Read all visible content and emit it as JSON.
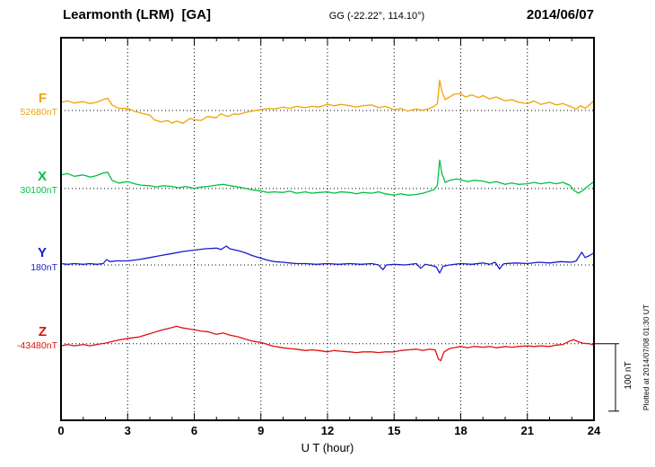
{
  "header": {
    "station": "Learmonth (LRM)  [GA]",
    "coords": "GG (-22.22°, 114.10°)",
    "date": "2014/06/07"
  },
  "axis": {
    "xlabel": "U T (hour)",
    "ticks": [
      0,
      3,
      6,
      9,
      12,
      15,
      18,
      21,
      24
    ]
  },
  "scale_bar": {
    "label": "100 nT",
    "span_nT": 100
  },
  "watermark": "Plotted at 2014/07/08 01:30 UT",
  "chart_data": {
    "type": "line",
    "title": "Learmonth (LRM) [GA] magnetogram 2014/06/07",
    "xlabel": "U T (hour)",
    "ylabel": "",
    "x_range": [
      0,
      24
    ],
    "grid": "dotted vertical lines every 3 h; dotted horizontal baseline per component",
    "y_units": "nT offset from each component baseline_value",
    "series": [
      {
        "name": "F",
        "baseline_label": "52680nT",
        "baseline_value": 52680,
        "color": "#f0a202",
        "baseline_frac": 0.19,
        "points": [
          [
            0,
            12
          ],
          [
            0.3,
            14
          ],
          [
            0.6,
            11
          ],
          [
            1,
            13
          ],
          [
            1.3,
            10
          ],
          [
            1.6,
            12
          ],
          [
            1.9,
            16
          ],
          [
            2.1,
            18
          ],
          [
            2.3,
            8
          ],
          [
            2.6,
            3
          ],
          [
            3,
            3
          ],
          [
            3.3,
            -1
          ],
          [
            3.6,
            -4
          ],
          [
            4,
            -7
          ],
          [
            4.2,
            -14
          ],
          [
            4.5,
            -17
          ],
          [
            4.8,
            -15
          ],
          [
            5,
            -19
          ],
          [
            5.2,
            -16
          ],
          [
            5.5,
            -19
          ],
          [
            5.8,
            -12
          ],
          [
            6,
            -14
          ],
          [
            6.3,
            -15
          ],
          [
            6.6,
            -9
          ],
          [
            7,
            -11
          ],
          [
            7.2,
            -5
          ],
          [
            7.5,
            -9
          ],
          [
            7.8,
            -5
          ],
          [
            8,
            -6
          ],
          [
            8.3,
            -3
          ],
          [
            8.6,
            -1
          ],
          [
            9,
            1
          ],
          [
            9.3,
            3
          ],
          [
            9.6,
            2
          ],
          [
            10,
            5
          ],
          [
            10.3,
            3
          ],
          [
            10.6,
            6
          ],
          [
            11,
            4
          ],
          [
            11.3,
            6
          ],
          [
            11.6,
            5
          ],
          [
            12,
            9
          ],
          [
            12.3,
            7
          ],
          [
            12.6,
            9
          ],
          [
            13,
            7
          ],
          [
            13.3,
            5
          ],
          [
            13.6,
            7
          ],
          [
            14,
            8
          ],
          [
            14.3,
            4
          ],
          [
            14.6,
            6
          ],
          [
            15,
            1
          ],
          [
            15.3,
            3
          ],
          [
            15.6,
            -1
          ],
          [
            16,
            2
          ],
          [
            16.3,
            0
          ],
          [
            16.6,
            3
          ],
          [
            16.8,
            6
          ],
          [
            16.95,
            10
          ],
          [
            17.05,
            45
          ],
          [
            17.15,
            28
          ],
          [
            17.3,
            16
          ],
          [
            17.5,
            20
          ],
          [
            17.7,
            24
          ],
          [
            18,
            25
          ],
          [
            18.2,
            20
          ],
          [
            18.5,
            23
          ],
          [
            18.8,
            19
          ],
          [
            19,
            22
          ],
          [
            19.3,
            17
          ],
          [
            19.6,
            20
          ],
          [
            20,
            14
          ],
          [
            20.3,
            16
          ],
          [
            20.6,
            12
          ],
          [
            21,
            10
          ],
          [
            21.3,
            14
          ],
          [
            21.6,
            9
          ],
          [
            22,
            12
          ],
          [
            22.3,
            8
          ],
          [
            22.6,
            10
          ],
          [
            23,
            5
          ],
          [
            23.2,
            2
          ],
          [
            23.4,
            7
          ],
          [
            23.6,
            3
          ],
          [
            23.8,
            8
          ],
          [
            24,
            15
          ]
        ]
      },
      {
        "name": "X",
        "baseline_label": "30100nT",
        "baseline_value": 30100,
        "color": "#00c040",
        "baseline_frac": 0.394,
        "points": [
          [
            0,
            20
          ],
          [
            0.3,
            22
          ],
          [
            0.6,
            18
          ],
          [
            1,
            20
          ],
          [
            1.3,
            17
          ],
          [
            1.6,
            19
          ],
          [
            1.9,
            23
          ],
          [
            2.1,
            24
          ],
          [
            2.3,
            12
          ],
          [
            2.6,
            8
          ],
          [
            3,
            10
          ],
          [
            3.3,
            7
          ],
          [
            3.6,
            5
          ],
          [
            4,
            4
          ],
          [
            4.3,
            2
          ],
          [
            4.6,
            4
          ],
          [
            5,
            3
          ],
          [
            5.3,
            1
          ],
          [
            5.6,
            3
          ],
          [
            6,
            0
          ],
          [
            6.3,
            2
          ],
          [
            6.6,
            3
          ],
          [
            7,
            5
          ],
          [
            7.3,
            6
          ],
          [
            7.6,
            4
          ],
          [
            8,
            2
          ],
          [
            8.3,
            0
          ],
          [
            8.6,
            -2
          ],
          [
            9,
            -4
          ],
          [
            9.3,
            -6
          ],
          [
            9.6,
            -5
          ],
          [
            10,
            -6
          ],
          [
            10.3,
            -4
          ],
          [
            10.6,
            -7
          ],
          [
            11,
            -5
          ],
          [
            11.3,
            -7
          ],
          [
            11.6,
            -6
          ],
          [
            12,
            -5
          ],
          [
            12.3,
            -7
          ],
          [
            12.6,
            -5
          ],
          [
            13,
            -6
          ],
          [
            13.3,
            -8
          ],
          [
            13.6,
            -6
          ],
          [
            14,
            -7
          ],
          [
            14.3,
            -5
          ],
          [
            14.6,
            -8
          ],
          [
            15,
            -10
          ],
          [
            15.3,
            -8
          ],
          [
            15.6,
            -10
          ],
          [
            16,
            -9
          ],
          [
            16.3,
            -7
          ],
          [
            16.6,
            -4
          ],
          [
            16.8,
            -2
          ],
          [
            16.95,
            5
          ],
          [
            17.05,
            42
          ],
          [
            17.15,
            22
          ],
          [
            17.3,
            9
          ],
          [
            17.5,
            12
          ],
          [
            17.8,
            14
          ],
          [
            18,
            13
          ],
          [
            18.3,
            10
          ],
          [
            18.6,
            12
          ],
          [
            19,
            11
          ],
          [
            19.3,
            8
          ],
          [
            19.6,
            10
          ],
          [
            20,
            6
          ],
          [
            20.3,
            8
          ],
          [
            20.6,
            6
          ],
          [
            21,
            7
          ],
          [
            21.3,
            9
          ],
          [
            21.6,
            7
          ],
          [
            22,
            9
          ],
          [
            22.3,
            7
          ],
          [
            22.6,
            9
          ],
          [
            22.9,
            5
          ],
          [
            23.1,
            -3
          ],
          [
            23.3,
            -7
          ],
          [
            23.5,
            -3
          ],
          [
            23.7,
            3
          ],
          [
            24,
            10
          ]
        ]
      },
      {
        "name": "Y",
        "baseline_label": "180nT",
        "baseline_value": 180,
        "color": "#1a1ad0",
        "baseline_frac": 0.594,
        "points": [
          [
            0,
            2
          ],
          [
            0.3,
            1
          ],
          [
            0.6,
            2
          ],
          [
            1,
            1
          ],
          [
            1.3,
            2
          ],
          [
            1.6,
            1
          ],
          [
            1.9,
            2
          ],
          [
            2.05,
            8
          ],
          [
            2.2,
            5
          ],
          [
            2.5,
            6
          ],
          [
            3,
            6
          ],
          [
            3.5,
            8
          ],
          [
            4,
            11
          ],
          [
            4.5,
            14
          ],
          [
            5,
            17
          ],
          [
            5.5,
            20
          ],
          [
            6,
            22
          ],
          [
            6.5,
            24
          ],
          [
            7,
            25
          ],
          [
            7.2,
            23
          ],
          [
            7.45,
            28
          ],
          [
            7.6,
            24
          ],
          [
            8,
            21
          ],
          [
            8.3,
            18
          ],
          [
            8.6,
            14
          ],
          [
            9,
            10
          ],
          [
            9.3,
            7
          ],
          [
            9.6,
            5
          ],
          [
            10,
            4
          ],
          [
            10.3,
            3
          ],
          [
            10.6,
            2
          ],
          [
            11,
            2
          ],
          [
            11.5,
            1
          ],
          [
            12,
            2
          ],
          [
            12.5,
            1
          ],
          [
            13,
            2
          ],
          [
            13.5,
            1
          ],
          [
            14,
            2
          ],
          [
            14.3,
            0
          ],
          [
            14.5,
            -7
          ],
          [
            14.65,
            0
          ],
          [
            15,
            1
          ],
          [
            15.5,
            0
          ],
          [
            16,
            2
          ],
          [
            16.2,
            -5
          ],
          [
            16.4,
            1
          ],
          [
            16.7,
            -1
          ],
          [
            16.9,
            -3
          ],
          [
            17.05,
            -12
          ],
          [
            17.2,
            -2
          ],
          [
            17.5,
            0
          ],
          [
            18,
            2
          ],
          [
            18.5,
            1
          ],
          [
            19,
            3
          ],
          [
            19.3,
            1
          ],
          [
            19.55,
            4
          ],
          [
            19.75,
            -6
          ],
          [
            19.9,
            1
          ],
          [
            20,
            2
          ],
          [
            20.5,
            3
          ],
          [
            21,
            2
          ],
          [
            21.5,
            4
          ],
          [
            22,
            3
          ],
          [
            22.5,
            5
          ],
          [
            23,
            4
          ],
          [
            23.2,
            6
          ],
          [
            23.45,
            19
          ],
          [
            23.6,
            11
          ],
          [
            23.8,
            14
          ],
          [
            24,
            18
          ]
        ]
      },
      {
        "name": "Z",
        "baseline_label": "-43480nT",
        "baseline_value": -43480,
        "color": "#e01010",
        "baseline_frac": 0.8,
        "points": [
          [
            0,
            -3
          ],
          [
            0.3,
            -1
          ],
          [
            0.6,
            -3
          ],
          [
            1,
            -1
          ],
          [
            1.3,
            -3
          ],
          [
            1.6,
            -1
          ],
          [
            2,
            1
          ],
          [
            2.5,
            5
          ],
          [
            3,
            8
          ],
          [
            3.5,
            10
          ],
          [
            4,
            15
          ],
          [
            4.3,
            18
          ],
          [
            4.6,
            21
          ],
          [
            5,
            24
          ],
          [
            5.2,
            26
          ],
          [
            5.4,
            24
          ],
          [
            5.6,
            23
          ],
          [
            6,
            21
          ],
          [
            6.3,
            19
          ],
          [
            6.6,
            18
          ],
          [
            7,
            14
          ],
          [
            7.3,
            16
          ],
          [
            7.6,
            13
          ],
          [
            8,
            10
          ],
          [
            8.3,
            7
          ],
          [
            8.6,
            4
          ],
          [
            9,
            2
          ],
          [
            9.2,
            0
          ],
          [
            9.5,
            -3
          ],
          [
            10,
            -6
          ],
          [
            10.3,
            -7
          ],
          [
            10.6,
            -8
          ],
          [
            11,
            -10
          ],
          [
            11.3,
            -9
          ],
          [
            11.6,
            -10
          ],
          [
            12,
            -12
          ],
          [
            12.3,
            -10
          ],
          [
            12.6,
            -11
          ],
          [
            13,
            -12
          ],
          [
            13.3,
            -13
          ],
          [
            13.6,
            -12
          ],
          [
            14,
            -12
          ],
          [
            14.3,
            -13
          ],
          [
            14.6,
            -12
          ],
          [
            15,
            -12
          ],
          [
            15.3,
            -10
          ],
          [
            15.6,
            -9
          ],
          [
            16,
            -8
          ],
          [
            16.3,
            -10
          ],
          [
            16.6,
            -8
          ],
          [
            16.85,
            -9
          ],
          [
            17,
            -23
          ],
          [
            17.1,
            -25
          ],
          [
            17.25,
            -12
          ],
          [
            17.5,
            -7
          ],
          [
            18,
            -4
          ],
          [
            18.3,
            -6
          ],
          [
            18.6,
            -4
          ],
          [
            19,
            -5
          ],
          [
            19.3,
            -4
          ],
          [
            19.6,
            -6
          ],
          [
            20,
            -4
          ],
          [
            20.3,
            -5
          ],
          [
            20.6,
            -4
          ],
          [
            21,
            -3
          ],
          [
            21.3,
            -4
          ],
          [
            21.6,
            -3
          ],
          [
            22,
            -4
          ],
          [
            22.3,
            -2
          ],
          [
            22.6,
            -1
          ],
          [
            22.9,
            4
          ],
          [
            23.1,
            6
          ],
          [
            23.3,
            3
          ],
          [
            23.5,
            1
          ],
          [
            23.8,
            0
          ],
          [
            24,
            -2
          ]
        ]
      }
    ]
  }
}
